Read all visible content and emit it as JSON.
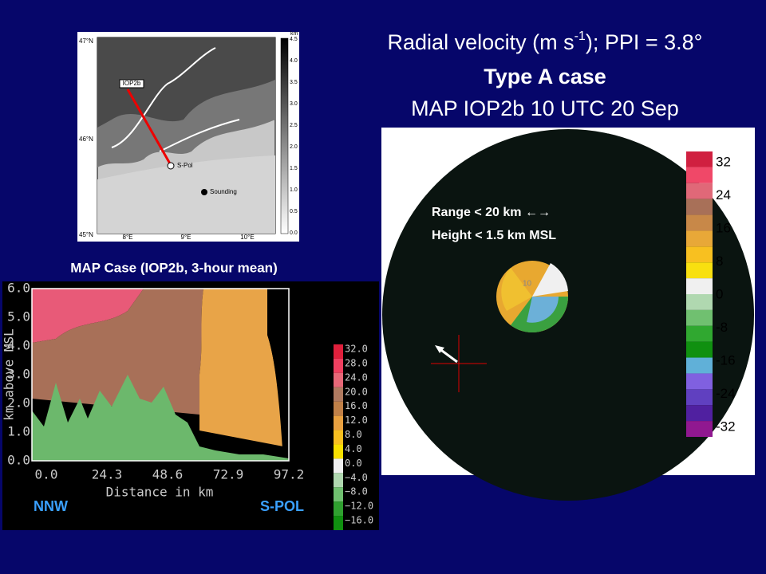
{
  "title": {
    "line1_start": "Radial velocity (m s",
    "line1_sup": "-1",
    "line1_end": "); PPI = 3.8°",
    "line2": "Type A case",
    "line3": "MAP IOP2b 10 UTC 20 Sep"
  },
  "map": {
    "lat_labels": [
      "47°N",
      "46°N",
      "45°N"
    ],
    "lon_labels": [
      "8°E",
      "9°E",
      "10°E"
    ],
    "colorbar_unit": "km",
    "colorbar_labels": [
      "4.5",
      "4.0",
      "3.5",
      "3.0",
      "2.5",
      "2.0",
      "1.5",
      "1.0",
      "0.5",
      "0.0"
    ],
    "iop_label": "IOP2b",
    "radar_label": "S-Pol",
    "sounding_label": "Sounding"
  },
  "cross_section": {
    "title": "MAP Case (IOP2b, 3-hour mean)",
    "y_label": "km above MSL",
    "y_ticks": [
      "6.0",
      "5.0",
      "4.0",
      "3.0",
      "2.0",
      "1.0",
      "0.0"
    ],
    "x_label": "Distance in km",
    "x_ticks": [
      "0.0",
      "24.3",
      "48.6",
      "72.9",
      "97.2"
    ],
    "colorbar_labels": [
      "32.0",
      "28.0",
      "24.0",
      "20.0",
      "16.0",
      "12.0",
      "8.0",
      "4.0",
      "0.0",
      "−4.0",
      "−8.0",
      "−12.0",
      "−16.0"
    ],
    "left_label": "NNW",
    "right_label": "S-POL"
  },
  "ppi": {
    "annotation_line1": "Range < 20 km ←→",
    "annotation_line2": "Height < 1.5 km MSL",
    "ring_label": "10",
    "legend_labels": [
      "32",
      "24",
      "16",
      "8",
      "0",
      "-8",
      "-16",
      "-24",
      "-32"
    ]
  }
}
